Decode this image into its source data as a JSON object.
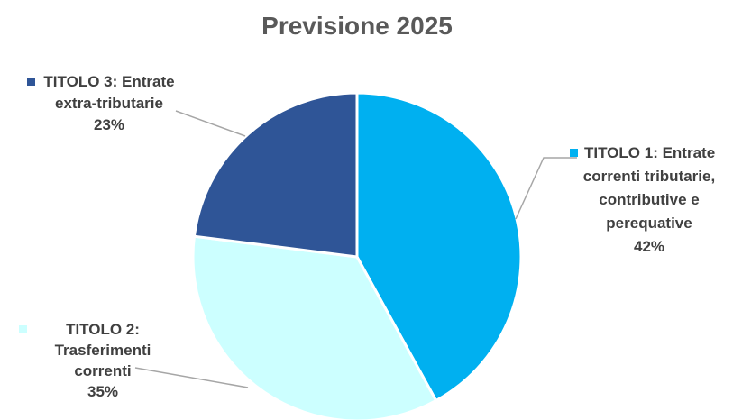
{
  "chart_data": {
    "type": "pie",
    "title": "Previsione 2025",
    "slices": [
      {
        "name": "TITOLO 1: Entrate correnti tributarie, contributive e perequative",
        "label_lines": [
          "TITOLO 1: Entrate",
          "correnti tributarie,",
          "contributive e",
          "perequative"
        ],
        "value": 42,
        "value_label": "42%",
        "color": "#00b0f0"
      },
      {
        "name": "TITOLO 2: Trasferimenti correnti",
        "label_lines": [
          "TITOLO 2:",
          "Trasferimenti",
          "correnti"
        ],
        "value": 35,
        "value_label": "35%",
        "color": "#ccffff"
      },
      {
        "name": "TITOLO 3: Entrate extra-tributarie",
        "label_lines": [
          "TITOLO 3: Entrate",
          "extra-tributarie"
        ],
        "value": 23,
        "value_label": "23%",
        "color": "#2f5597"
      }
    ]
  }
}
